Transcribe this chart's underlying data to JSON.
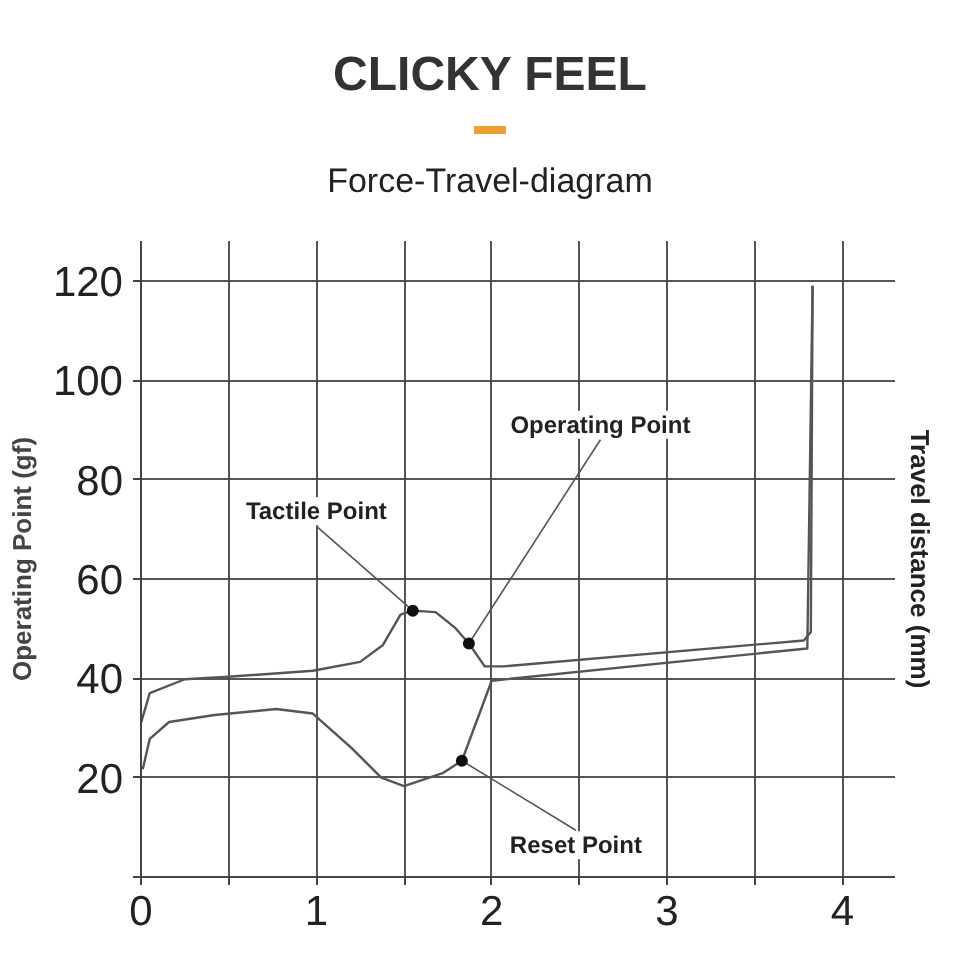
{
  "chart_data": {
    "type": "line",
    "title": "CLICKY FEEL",
    "subtitle": "Force-Travel-diagram",
    "y2label": "Travel distance (mm)",
    "ylabel": "Operating Point (gf)",
    "xlim": [
      0,
      4.3
    ],
    "ylim": [
      0,
      128
    ],
    "xticks": [
      0,
      {
        "value": 0.5,
        "label": null
      },
      1,
      {
        "value": 1.5,
        "label": null
      },
      2,
      {
        "value": 2.5,
        "label": null
      },
      3,
      {
        "value": 3.5,
        "label": null
      },
      4
    ],
    "yticks": [
      {
        "value": 0,
        "label": null
      },
      20,
      40,
      60,
      80,
      100,
      120
    ],
    "grid": true,
    "marker": "none",
    "line_style": "solid",
    "series": [
      {
        "color": "#555555",
        "x": [
          0,
          0.05,
          0.25,
          0.5,
          0.98,
          1.25,
          1.38,
          1.48,
          1.55,
          1.68,
          1.79,
          1.87,
          1.96,
          2.07,
          3.78,
          3.82,
          3.83
        ],
        "values": [
          31,
          37,
          39.8,
          40.3,
          41.5,
          43.3,
          46.7,
          52.8,
          53.6,
          53.3,
          50.2,
          47,
          42.4,
          42.4,
          47.6,
          49.3,
          119
        ]
      },
      {
        "color": "#555555",
        "x": [
          3.83,
          3.8,
          2.0,
          1.83,
          1.72,
          1.5,
          1.37,
          1.2,
          0.98,
          0.77,
          0.42,
          0.16,
          0.05,
          0.01
        ],
        "values": [
          119,
          46,
          39.5,
          23.4,
          20.9,
          18.3,
          20,
          26,
          32.9,
          33.8,
          32.6,
          31.2,
          27.8,
          21.7
        ]
      }
    ],
    "annotations": [
      {
        "text": "Tactile Point",
        "x": 1.55,
        "y": 53.6
      },
      {
        "text": "Operating Point",
        "x": 1.87,
        "y": 47
      },
      {
        "text": "Reset Point",
        "x": 1.83,
        "y": 23.4
      }
    ]
  }
}
